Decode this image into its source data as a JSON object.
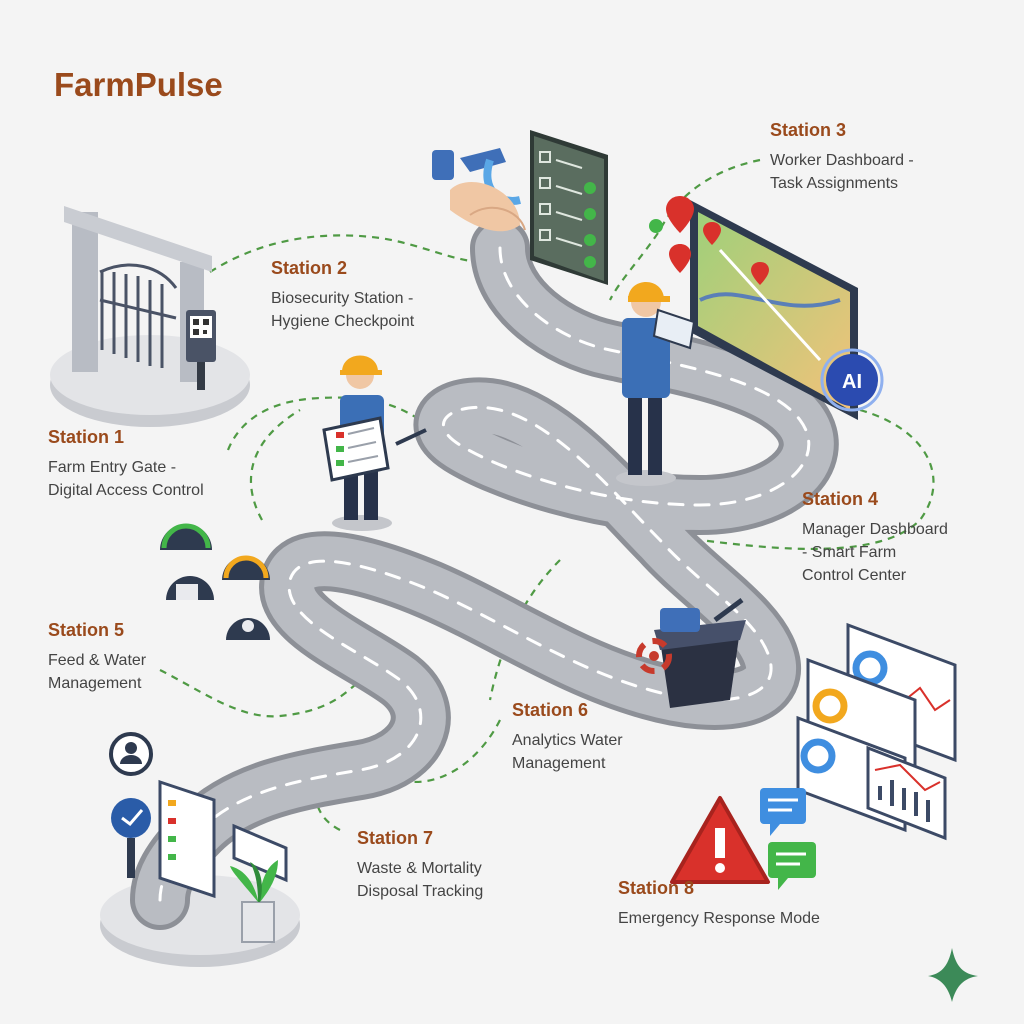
{
  "brand": {
    "name": "FarmPulse"
  },
  "stations": [
    {
      "title": "Station 1",
      "lines": [
        "Farm Entry Gate -",
        "Digital Access Control"
      ]
    },
    {
      "title": "Station 2",
      "lines": [
        "Biosecurity Station -",
        "Hygiene Checkpoint"
      ]
    },
    {
      "title": "Station 3",
      "lines": [
        "Worker Dashboard -",
        "Task Assignments"
      ]
    },
    {
      "title": "Station 4",
      "lines": [
        "Manager Dashboard",
        "- Smart Farm",
        "Control Center"
      ]
    },
    {
      "title": "Station 5",
      "lines": [
        "Feed & Water",
        "Management"
      ]
    },
    {
      "title": "Station 6",
      "lines": [
        "Analytics Water",
        "Management"
      ]
    },
    {
      "title": "Station 7",
      "lines": [
        "Waste & Mortality",
        "Disposal Tracking"
      ]
    },
    {
      "title": "Station 8",
      "lines": [
        "Emergency Response Mode"
      ]
    }
  ],
  "badges": {
    "ai": "AI"
  },
  "icons": [
    "gate-icon",
    "qr-code-icon",
    "hand-wash-icon",
    "checklist-icon",
    "map-pin-icon",
    "tablet-icon",
    "gauge-icon",
    "bin-icon",
    "biohazard-icon",
    "warning-icon",
    "chat-bubble-icon",
    "plant-icon",
    "user-icon",
    "sparkle-icon"
  ],
  "colors": {
    "brand": "#9a4a1c",
    "connector": "#4f9a44",
    "road": "#8d9097",
    "alert": "#d9312b"
  }
}
